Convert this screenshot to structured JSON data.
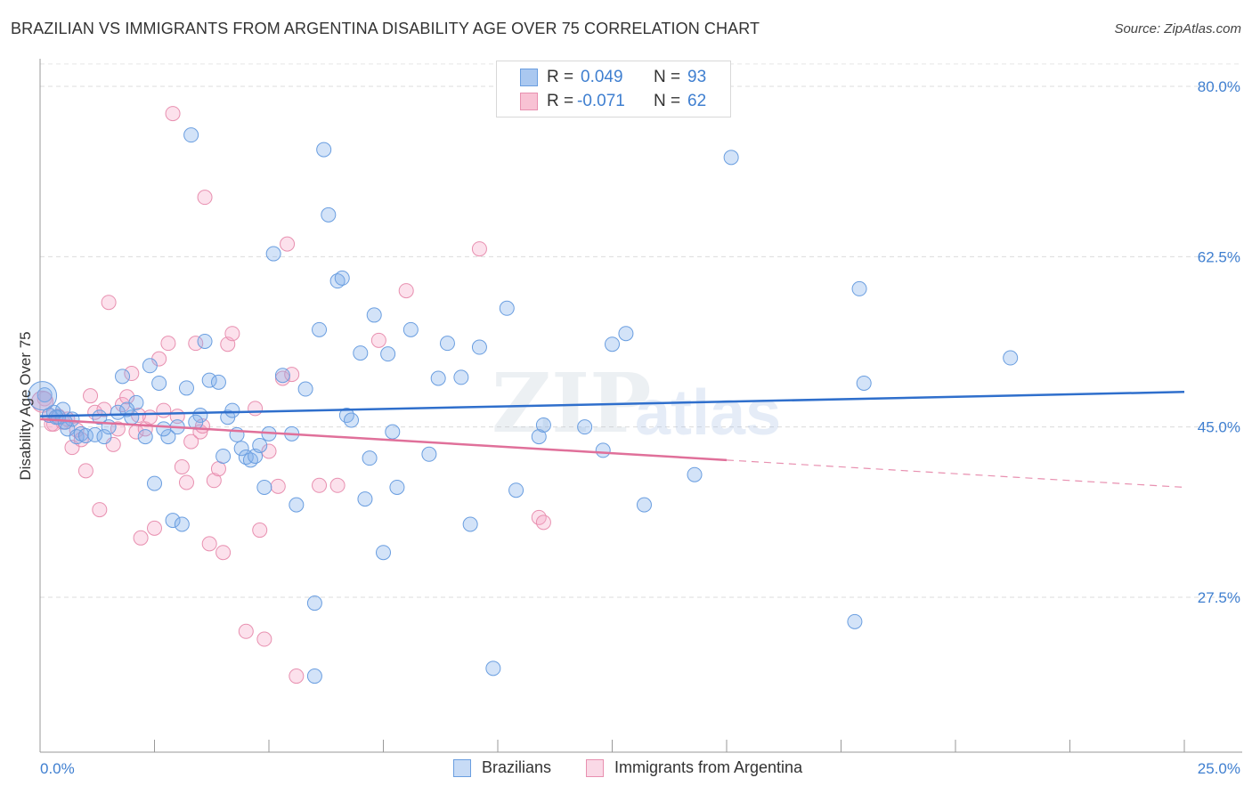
{
  "title": "BRAZILIAN VS IMMIGRANTS FROM ARGENTINA DISABILITY AGE OVER 75 CORRELATION CHART",
  "source": "Source: ZipAtlas.com",
  "watermark": {
    "zip": "ZIP",
    "atlas": "atlas"
  },
  "legend": {
    "r_label": "R =",
    "n_label": "N =",
    "rows": [
      {
        "r": "0.049",
        "n": "93",
        "color": "#aac8f0",
        "border": "#6a9ee0"
      },
      {
        "r": "-0.071",
        "n": "62",
        "color": "#f8c2d4",
        "border": "#e890b0"
      }
    ]
  },
  "chart_data": {
    "type": "scatter",
    "title": "BRAZILIAN VS IMMIGRANTS FROM ARGENTINA DISABILITY AGE OVER 75 CORRELATION CHART",
    "xlabel": "",
    "ylabel": "Disability Age Over 75",
    "xlim": [
      0,
      25
    ],
    "ylim": [
      10,
      82
    ],
    "x_tick_labels": [
      "0.0%",
      "25.0%"
    ],
    "y_ticks": [
      80,
      62.5,
      45,
      27.5
    ],
    "y_tick_labels": [
      "80.0%",
      "62.5%",
      "45.0%",
      "27.5%"
    ],
    "grid": "horizontal dashed",
    "legend_position": "top-center and bottom",
    "series": [
      {
        "name": "Brazilians",
        "color": "#6a9ee0",
        "fill": "rgba(130,175,235,0.35)",
        "trend": {
          "x0": 0,
          "y0": 46.1,
          "x1": 25,
          "y1": 48.6,
          "style": "solid"
        },
        "points": [
          [
            0.1,
            48.3
          ],
          [
            0.3,
            46.5
          ],
          [
            0.4,
            46.0
          ],
          [
            0.5,
            46.8
          ],
          [
            0.6,
            44.8
          ],
          [
            0.7,
            45.8
          ],
          [
            0.8,
            44.0
          ],
          [
            0.9,
            44.3
          ],
          [
            1.0,
            44.1
          ],
          [
            1.2,
            44.2
          ],
          [
            1.3,
            46.0
          ],
          [
            1.4,
            44.0
          ],
          [
            1.5,
            45.0
          ],
          [
            1.7,
            46.5
          ],
          [
            1.8,
            50.2
          ],
          [
            2.0,
            46.0
          ],
          [
            2.1,
            47.5
          ],
          [
            2.3,
            44.0
          ],
          [
            2.4,
            51.3
          ],
          [
            2.5,
            39.2
          ],
          [
            2.6,
            49.5
          ],
          [
            2.8,
            44.0
          ],
          [
            2.9,
            35.4
          ],
          [
            3.0,
            45.0
          ],
          [
            3.1,
            35.0
          ],
          [
            3.2,
            49.0
          ],
          [
            3.3,
            75.0
          ],
          [
            3.5,
            46.2
          ],
          [
            3.6,
            53.8
          ],
          [
            3.7,
            49.8
          ],
          [
            3.9,
            49.6
          ],
          [
            4.0,
            42.0
          ],
          [
            4.1,
            46.0
          ],
          [
            4.2,
            46.7
          ],
          [
            4.3,
            44.2
          ],
          [
            4.4,
            42.8
          ],
          [
            4.5,
            41.9
          ],
          [
            4.6,
            41.6
          ],
          [
            4.7,
            42.0
          ],
          [
            4.8,
            43.1
          ],
          [
            4.9,
            38.8
          ],
          [
            5.0,
            44.3
          ],
          [
            5.1,
            62.8
          ],
          [
            5.3,
            50.3
          ],
          [
            5.5,
            44.3
          ],
          [
            5.6,
            37.0
          ],
          [
            5.8,
            48.9
          ],
          [
            6.0,
            26.9
          ],
          [
            6.1,
            55.0
          ],
          [
            6.2,
            73.5
          ],
          [
            6.3,
            66.8
          ],
          [
            6.5,
            60.0
          ],
          [
            6.6,
            60.3
          ],
          [
            6.7,
            46.2
          ],
          [
            6.8,
            45.7
          ],
          [
            7.0,
            52.6
          ],
          [
            7.1,
            37.6
          ],
          [
            7.2,
            41.8
          ],
          [
            7.3,
            56.5
          ],
          [
            7.5,
            32.1
          ],
          [
            7.6,
            52.5
          ],
          [
            7.7,
            44.5
          ],
          [
            7.8,
            38.8
          ],
          [
            8.1,
            55.0
          ],
          [
            8.5,
            42.2
          ],
          [
            8.7,
            50.0
          ],
          [
            8.9,
            53.6
          ],
          [
            9.2,
            50.1
          ],
          [
            9.4,
            35.0
          ],
          [
            9.6,
            53.2
          ],
          [
            9.9,
            20.2
          ],
          [
            10.2,
            57.2
          ],
          [
            10.4,
            38.5
          ],
          [
            10.9,
            44.0
          ],
          [
            11.0,
            45.2
          ],
          [
            11.9,
            45.0
          ],
          [
            12.3,
            42.6
          ],
          [
            12.5,
            53.5
          ],
          [
            12.8,
            54.6
          ],
          [
            13.2,
            37.0
          ],
          [
            14.3,
            40.1
          ],
          [
            15.1,
            72.7
          ],
          [
            17.8,
            25.0
          ],
          [
            17.9,
            59.2
          ],
          [
            18.0,
            49.5
          ],
          [
            21.2,
            52.1
          ],
          [
            0.2,
            46.2
          ],
          [
            0.35,
            46.0
          ],
          [
            0.55,
            45.5
          ],
          [
            6.0,
            19.4
          ],
          [
            1.9,
            46.8
          ],
          [
            3.4,
            45.5
          ],
          [
            2.7,
            44.8
          ]
        ]
      },
      {
        "name": "Immigrants from Argentina",
        "color": "#e890b0",
        "fill": "rgba(245,170,200,0.35)",
        "trend": {
          "x0": 0,
          "y0": 45.8,
          "x1": 15,
          "y1": 41.6,
          "style": "solid",
          "dashed_to": [
            25,
            38.8
          ]
        },
        "points": [
          [
            0.1,
            47.9
          ],
          [
            0.2,
            46.2
          ],
          [
            0.3,
            45.3
          ],
          [
            0.4,
            46.1
          ],
          [
            0.5,
            45.5
          ],
          [
            0.6,
            45.8
          ],
          [
            0.7,
            42.9
          ],
          [
            0.8,
            44.7
          ],
          [
            0.9,
            43.7
          ],
          [
            1.0,
            40.5
          ],
          [
            1.1,
            48.2
          ],
          [
            1.2,
            46.5
          ],
          [
            1.3,
            36.5
          ],
          [
            1.4,
            46.8
          ],
          [
            1.5,
            57.8
          ],
          [
            1.6,
            43.2
          ],
          [
            1.7,
            44.8
          ],
          [
            1.8,
            47.3
          ],
          [
            1.9,
            48.1
          ],
          [
            2.0,
            50.5
          ],
          [
            2.1,
            44.5
          ],
          [
            2.2,
            33.6
          ],
          [
            2.3,
            44.8
          ],
          [
            2.4,
            46.0
          ],
          [
            2.5,
            34.6
          ],
          [
            2.6,
            52.0
          ],
          [
            2.7,
            46.7
          ],
          [
            2.8,
            53.6
          ],
          [
            2.9,
            77.2
          ],
          [
            3.0,
            46.1
          ],
          [
            3.1,
            40.9
          ],
          [
            3.2,
            39.3
          ],
          [
            3.3,
            43.5
          ],
          [
            3.4,
            53.6
          ],
          [
            3.5,
            44.5
          ],
          [
            3.6,
            68.6
          ],
          [
            3.7,
            33.0
          ],
          [
            3.8,
            39.5
          ],
          [
            3.9,
            40.7
          ],
          [
            4.0,
            32.1
          ],
          [
            4.1,
            53.5
          ],
          [
            4.2,
            54.6
          ],
          [
            4.5,
            24.0
          ],
          [
            4.7,
            46.9
          ],
          [
            4.8,
            34.4
          ],
          [
            4.9,
            23.2
          ],
          [
            5.0,
            42.5
          ],
          [
            5.2,
            38.9
          ],
          [
            5.3,
            50.0
          ],
          [
            5.4,
            63.8
          ],
          [
            5.5,
            50.4
          ],
          [
            5.6,
            19.4
          ],
          [
            6.1,
            39.0
          ],
          [
            6.5,
            39.0
          ],
          [
            7.4,
            53.9
          ],
          [
            8.0,
            59.0
          ],
          [
            9.6,
            63.3
          ],
          [
            10.9,
            35.7
          ],
          [
            11.0,
            35.2
          ],
          [
            0.25,
            45.3
          ],
          [
            2.15,
            46.2
          ],
          [
            3.55,
            45.1
          ]
        ]
      }
    ]
  },
  "bottom_legend": [
    {
      "label": "Brazilians"
    },
    {
      "label": "Immigrants from Argentina"
    }
  ]
}
